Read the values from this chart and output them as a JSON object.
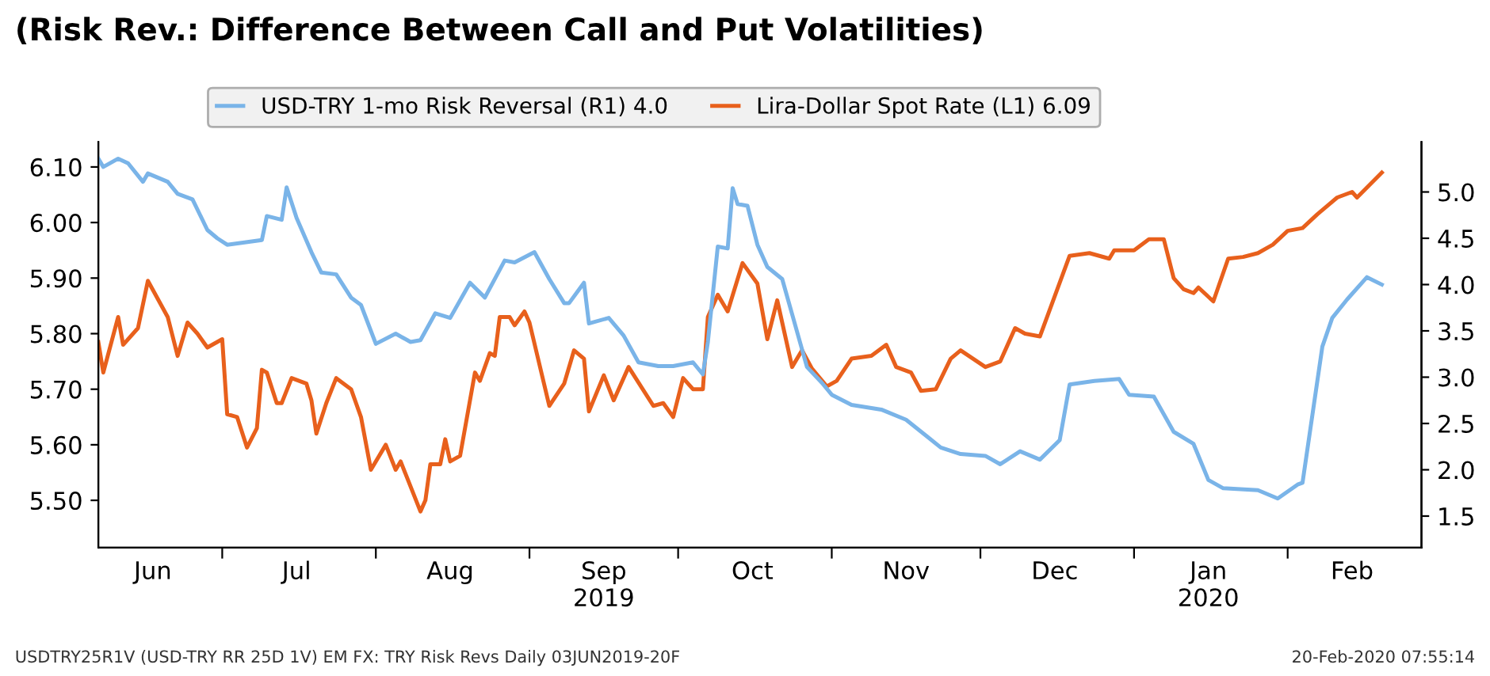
{
  "chart_data": {
    "type": "line",
    "title": "(Risk Rev.: Difference Between Call and Put Volatilities)",
    "annotations": [
      "USDTRY25R1V (USD-TRY RR 25D 1V) EM FX: TRY Risk Revs Daily 03JUN2019-20F",
      "20-Feb-2020 07:55:14"
    ],
    "legend": "top",
    "grid": false,
    "xlim": [
      "2019-06-06",
      "2020-02-28"
    ],
    "xticks": [
      {
        "value": "2019-07-01",
        "label": null
      },
      {
        "value": "2019-08-01",
        "label": null
      },
      {
        "value": "2019-09-01",
        "label": null
      },
      {
        "value": "2019-10-01",
        "label": null
      },
      {
        "value": "2019-11-01",
        "label": null
      },
      {
        "value": "2019-12-01",
        "label": null
      },
      {
        "value": "2020-01-01",
        "label": null
      },
      {
        "value": "2020-02-01",
        "label": null
      },
      {
        "value": "2019-06-17",
        "label": "Jun"
      },
      {
        "value": "2019-07-16",
        "label": "Jul"
      },
      {
        "value": "2019-08-16",
        "label": "Aug"
      },
      {
        "value": "2019-09-16",
        "label": "Sep\n2019"
      },
      {
        "value": "2019-10-16",
        "label": "Oct"
      },
      {
        "value": "2019-11-16",
        "label": "Nov"
      },
      {
        "value": "2019-12-16",
        "label": "Dec"
      },
      {
        "value": "2020-01-16",
        "label": "Jan\n2020"
      },
      {
        "value": "2020-02-14",
        "label": "Feb"
      }
    ],
    "ylim": [
      5.415,
      6.145
    ],
    "yticks": [
      {
        "value": 5.5,
        "label": "5.50"
      },
      {
        "value": 5.6,
        "label": "5.60"
      },
      {
        "value": 5.7,
        "label": "5.70"
      },
      {
        "value": 5.8,
        "label": "5.80"
      },
      {
        "value": 5.9,
        "label": "5.90"
      },
      {
        "value": 6.0,
        "label": "6.00"
      },
      {
        "value": 6.1,
        "label": "6.10"
      }
    ],
    "y2lim": [
      1.16,
      5.54
    ],
    "y2ticks": [
      1.5,
      {
        "value": 2,
        "label": "2.0"
      },
      2.5,
      {
        "value": 3,
        "label": "3.0"
      },
      3.5,
      {
        "value": 4,
        "label": "4.0"
      },
      4.5,
      {
        "value": 5,
        "label": "5.0"
      }
    ],
    "series": [
      {
        "name": "USD-TRY 1-mo Risk Reversal (R1) 4.0",
        "color": "#7ab4e8",
        "axis": "y2",
        "x": [
          "2019-06-06",
          "2019-06-07",
          "2019-06-10",
          "2019-06-12",
          "2019-06-15",
          "2019-06-16",
          "2019-06-20",
          "2019-06-22",
          "2019-06-25",
          "2019-06-28",
          "2019-06-30",
          "2019-07-02",
          "2019-07-09",
          "2019-07-10",
          "2019-07-13",
          "2019-07-14",
          "2019-07-16",
          "2019-07-19",
          "2019-07-21",
          "2019-07-24",
          "2019-07-27",
          "2019-07-29",
          "2019-08-01",
          "2019-08-05",
          "2019-08-08",
          "2019-08-10",
          "2019-08-13",
          "2019-08-16",
          "2019-08-20",
          "2019-08-23",
          "2019-08-27",
          "2019-08-29",
          "2019-09-02",
          "2019-09-05",
          "2019-09-08",
          "2019-09-09",
          "2019-09-12",
          "2019-09-13",
          "2019-09-17",
          "2019-09-20",
          "2019-09-23",
          "2019-09-27",
          "2019-09-30",
          "2019-10-04",
          "2019-10-06",
          "2019-10-07",
          "2019-10-09",
          "2019-10-11",
          "2019-10-12",
          "2019-10-13",
          "2019-10-15",
          "2019-10-17",
          "2019-10-19",
          "2019-10-22",
          "2019-10-24",
          "2019-10-27",
          "2019-10-30",
          "2019-11-01",
          "2019-11-05",
          "2019-11-11",
          "2019-11-16",
          "2019-11-20",
          "2019-11-23",
          "2019-11-27",
          "2019-12-02",
          "2019-12-05",
          "2019-12-09",
          "2019-12-13",
          "2019-12-17",
          "2019-12-19",
          "2019-12-24",
          "2019-12-29",
          "2019-12-31",
          "2020-01-05",
          "2020-01-09",
          "2020-01-13",
          "2020-01-16",
          "2020-01-19",
          "2020-01-26",
          "2020-01-30",
          "2020-02-03",
          "2020-02-04",
          "2020-02-08",
          "2020-02-10",
          "2020-02-13",
          "2020-02-17",
          "2020-02-20"
        ],
        "values": [
          5.36,
          5.27,
          5.36,
          5.31,
          5.11,
          5.2,
          5.11,
          4.98,
          4.92,
          4.59,
          4.5,
          4.43,
          4.48,
          4.74,
          4.7,
          5.05,
          4.72,
          4.35,
          4.13,
          4.11,
          3.86,
          3.78,
          3.36,
          3.47,
          3.38,
          3.4,
          3.69,
          3.64,
          4.02,
          3.86,
          4.26,
          4.24,
          4.35,
          4.06,
          3.8,
          3.8,
          4.02,
          3.58,
          3.64,
          3.45,
          3.16,
          3.12,
          3.12,
          3.16,
          3.03,
          3.38,
          4.41,
          4.39,
          5.04,
          4.87,
          4.85,
          4.43,
          4.19,
          4.06,
          3.68,
          3.11,
          2.94,
          2.81,
          2.7,
          2.65,
          2.54,
          2.37,
          2.24,
          2.17,
          2.15,
          2.06,
          2.2,
          2.11,
          2.32,
          2.92,
          2.96,
          2.98,
          2.81,
          2.79,
          2.41,
          2.28,
          1.89,
          1.8,
          1.78,
          1.69,
          1.84,
          1.86,
          3.33,
          3.64,
          3.84,
          4.08,
          4.0
        ]
      },
      {
        "name": "Lira-Dollar Spot Rate (L1) 6.09",
        "color": "#e8601c",
        "axis": "y",
        "x": [
          "2019-06-06",
          "2019-06-07",
          "2019-06-10",
          "2019-06-11",
          "2019-06-14",
          "2019-06-16",
          "2019-06-20",
          "2019-06-22",
          "2019-06-24",
          "2019-06-26",
          "2019-06-28",
          "2019-07-01",
          "2019-07-02",
          "2019-07-04",
          "2019-07-06",
          "2019-07-08",
          "2019-07-09",
          "2019-07-10",
          "2019-07-12",
          "2019-07-13",
          "2019-07-15",
          "2019-07-18",
          "2019-07-19",
          "2019-07-20",
          "2019-07-22",
          "2019-07-24",
          "2019-07-27",
          "2019-07-29",
          "2019-07-31",
          "2019-08-03",
          "2019-08-05",
          "2019-08-06",
          "2019-08-10",
          "2019-08-11",
          "2019-08-12",
          "2019-08-14",
          "2019-08-15",
          "2019-08-16",
          "2019-08-18",
          "2019-08-21",
          "2019-08-22",
          "2019-08-24",
          "2019-08-25",
          "2019-08-26",
          "2019-08-28",
          "2019-08-29",
          "2019-08-31",
          "2019-09-01",
          "2019-09-05",
          "2019-09-08",
          "2019-09-10",
          "2019-09-12",
          "2019-09-13",
          "2019-09-16",
          "2019-09-18",
          "2019-09-21",
          "2019-09-26",
          "2019-09-28",
          "2019-09-30",
          "2019-10-02",
          "2019-10-04",
          "2019-10-06",
          "2019-10-07",
          "2019-10-09",
          "2019-10-11",
          "2019-10-14",
          "2019-10-17",
          "2019-10-19",
          "2019-10-21",
          "2019-10-24",
          "2019-10-26",
          "2019-10-28",
          "2019-10-31",
          "2019-11-02",
          "2019-11-05",
          "2019-11-09",
          "2019-11-12",
          "2019-11-14",
          "2019-11-17",
          "2019-11-19",
          "2019-11-22",
          "2019-11-25",
          "2019-11-27",
          "2019-12-02",
          "2019-12-05",
          "2019-12-08",
          "2019-12-10",
          "2019-12-13",
          "2019-12-19",
          "2019-12-23",
          "2019-12-27",
          "2019-12-28",
          "2020-01-01",
          "2020-01-04",
          "2020-01-07",
          "2020-01-09",
          "2020-01-11",
          "2020-01-13",
          "2020-01-14",
          "2020-01-17",
          "2020-01-20",
          "2020-01-23",
          "2020-01-26",
          "2020-01-29",
          "2020-02-01",
          "2020-02-04",
          "2020-02-07",
          "2020-02-11",
          "2020-02-14",
          "2020-02-15",
          "2020-02-20"
        ],
        "values": [
          5.785,
          5.73,
          5.83,
          5.78,
          5.81,
          5.895,
          5.83,
          5.76,
          5.82,
          5.8,
          5.775,
          5.79,
          5.655,
          5.65,
          5.595,
          5.63,
          5.735,
          5.73,
          5.675,
          5.675,
          5.72,
          5.71,
          5.68,
          5.62,
          5.675,
          5.72,
          5.7,
          5.65,
          5.555,
          5.6,
          5.555,
          5.57,
          5.48,
          5.5,
          5.565,
          5.565,
          5.61,
          5.57,
          5.58,
          5.73,
          5.715,
          5.765,
          5.76,
          5.83,
          5.83,
          5.815,
          5.84,
          5.82,
          5.67,
          5.71,
          5.77,
          5.755,
          5.66,
          5.725,
          5.68,
          5.74,
          5.67,
          5.675,
          5.65,
          5.72,
          5.7,
          5.7,
          5.83,
          5.87,
          5.84,
          5.927,
          5.89,
          5.79,
          5.86,
          5.74,
          5.77,
          5.737,
          5.705,
          5.715,
          5.755,
          5.76,
          5.78,
          5.74,
          5.73,
          5.697,
          5.7,
          5.755,
          5.77,
          5.74,
          5.75,
          5.81,
          5.8,
          5.795,
          5.94,
          5.945,
          5.935,
          5.95,
          5.95,
          5.97,
          5.97,
          5.9,
          5.88,
          5.873,
          5.883,
          5.858,
          5.935,
          5.938,
          5.945,
          5.96,
          5.985,
          5.99,
          6.015,
          6.045,
          6.055,
          6.045,
          6.09
        ]
      }
    ]
  }
}
